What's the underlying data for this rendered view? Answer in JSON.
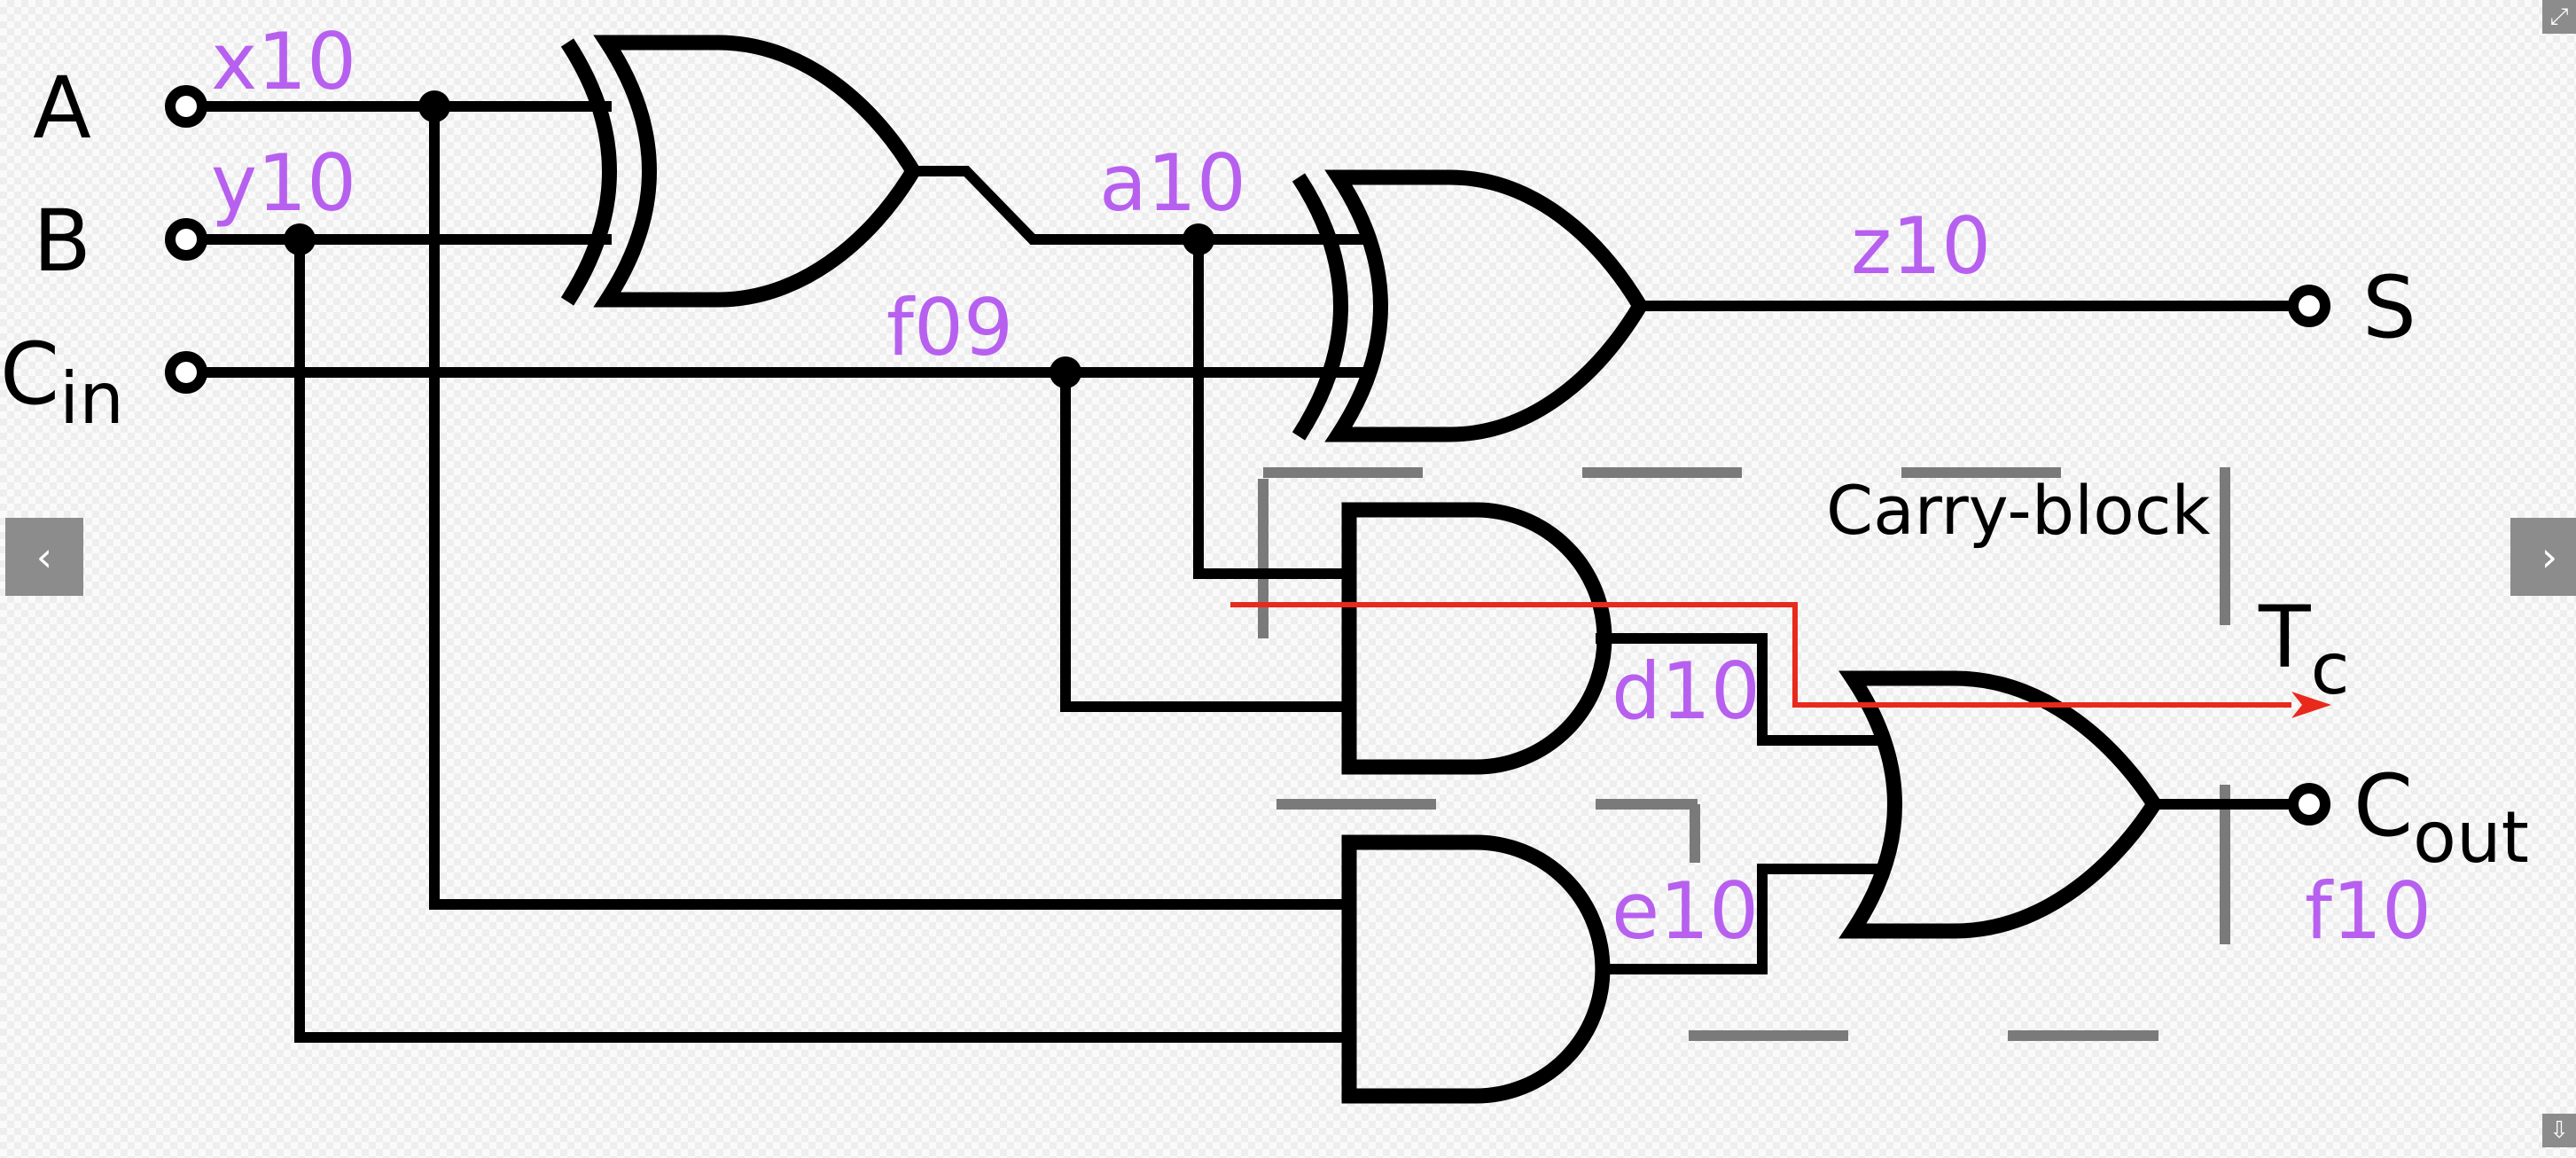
{
  "diagram": {
    "inputs": {
      "a": "A",
      "b": "B",
      "cin_main": "C",
      "cin_sub": "in"
    },
    "outputs": {
      "sum": "S",
      "cout_main": "C",
      "cout_sub": "out",
      "tc_main": "T",
      "tc_sub": "c"
    },
    "signals": {
      "x": "x10",
      "y": "y10",
      "a": "a10",
      "f_prev": "f09",
      "z": "z10",
      "d": "d10",
      "e": "e10",
      "f": "f10"
    },
    "block_label": "Carry-block",
    "colors": {
      "signal_label": "#b760ef",
      "critical_path": "#e8291c",
      "block_outline": "#7a7a7a",
      "wire": "#000000"
    }
  },
  "viewer": {
    "prev_icon": "‹",
    "next_icon": "›",
    "top_corner_icon": "⤢",
    "bottom_corner_icon": "⇩"
  }
}
